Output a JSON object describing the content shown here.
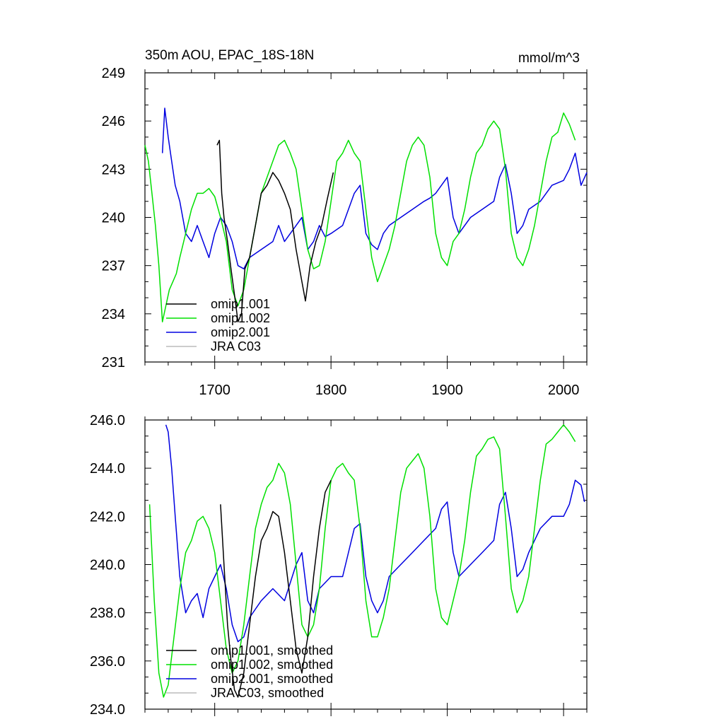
{
  "chart_data": [
    {
      "type": "line",
      "title": "350m AOU, EPAC_18S-18N",
      "units": "mmol/m^3",
      "xlim": [
        1640,
        2020
      ],
      "ylim": [
        231,
        249
      ],
      "xticks": [
        1700,
        1800,
        1900,
        2000
      ],
      "yticks": [
        231,
        234,
        237,
        240,
        243,
        246,
        249
      ],
      "ytick_format": "int",
      "show_xtick_labels": true,
      "grid": false,
      "legend": "bottom-left",
      "series": [
        {
          "name": "omip1.001",
          "color": "#000000",
          "x": [
            1702,
            1704,
            1706,
            1708,
            1711,
            1714,
            1717,
            1720,
            1723,
            1726,
            1730,
            1735,
            1740,
            1745,
            1750,
            1755,
            1760,
            1765,
            1770,
            1775,
            1778,
            1782,
            1787,
            1792,
            1797,
            1802
          ],
          "y": [
            244.5,
            244.8,
            241.5,
            240.0,
            238.5,
            236.8,
            235.2,
            233.5,
            234.0,
            236.8,
            237.5,
            239.5,
            241.5,
            242.0,
            242.8,
            242.3,
            241.5,
            240.5,
            238.0,
            236.0,
            234.8,
            237.0,
            238.5,
            239.5,
            241.2,
            242.8
          ]
        },
        {
          "name": "omip1.002",
          "color": "#00e000",
          "x": [
            1640,
            1643,
            1646,
            1649,
            1652,
            1655,
            1658,
            1661,
            1664,
            1667,
            1670,
            1675,
            1680,
            1685,
            1690,
            1695,
            1700,
            1705,
            1710,
            1715,
            1720,
            1725,
            1730,
            1735,
            1740,
            1745,
            1750,
            1755,
            1760,
            1765,
            1770,
            1775,
            1780,
            1785,
            1790,
            1795,
            1800,
            1805,
            1810,
            1815,
            1820,
            1825,
            1830,
            1835,
            1840,
            1845,
            1850,
            1855,
            1860,
            1865,
            1870,
            1875,
            1880,
            1885,
            1890,
            1895,
            1900,
            1905,
            1910,
            1915,
            1920,
            1925,
            1930,
            1935,
            1940,
            1945,
            1950,
            1955,
            1960,
            1965,
            1970,
            1975,
            1980,
            1985,
            1990,
            1995,
            2000,
            2005,
            2010
          ],
          "y": [
            244.5,
            243.5,
            241.5,
            239.5,
            237.0,
            233.5,
            234.5,
            235.5,
            236.0,
            236.5,
            237.5,
            239.0,
            240.5,
            241.5,
            241.5,
            241.8,
            241.3,
            240.0,
            238.5,
            235.5,
            234.5,
            235.5,
            237.5,
            239.5,
            241.5,
            242.5,
            243.5,
            244.5,
            244.8,
            244.0,
            243.0,
            240.5,
            238.0,
            236.8,
            237.0,
            238.5,
            241.0,
            243.5,
            244.0,
            244.8,
            244.0,
            243.5,
            240.5,
            237.5,
            236.0,
            237.0,
            238.0,
            239.5,
            241.5,
            243.5,
            244.5,
            245.0,
            244.5,
            242.5,
            239.0,
            237.5,
            237.0,
            238.5,
            239.0,
            240.5,
            242.5,
            244.0,
            244.5,
            245.5,
            246.0,
            245.5,
            243.0,
            239.0,
            237.5,
            237.0,
            238.0,
            239.5,
            241.5,
            243.5,
            245.0,
            245.3,
            246.5,
            245.8,
            244.8
          ]
        },
        {
          "name": "omip2.001",
          "color": "#0000e0",
          "x": [
            1655,
            1657,
            1660,
            1663,
            1666,
            1670,
            1675,
            1680,
            1685,
            1690,
            1695,
            1700,
            1705,
            1710,
            1715,
            1720,
            1725,
            1730,
            1740,
            1750,
            1755,
            1760,
            1770,
            1775,
            1780,
            1785,
            1790,
            1795,
            1800,
            1810,
            1820,
            1825,
            1830,
            1835,
            1840,
            1845,
            1850,
            1860,
            1870,
            1880,
            1885,
            1890,
            1895,
            1900,
            1905,
            1910,
            1920,
            1930,
            1940,
            1945,
            1950,
            1955,
            1960,
            1965,
            1970,
            1980,
            1990,
            2000,
            2005,
            2010,
            2015,
            2020
          ],
          "y": [
            244.0,
            246.8,
            245.0,
            243.5,
            242.0,
            241.0,
            239.0,
            238.5,
            239.5,
            238.5,
            237.5,
            239.0,
            240.0,
            239.5,
            238.5,
            237.0,
            236.8,
            237.5,
            238.0,
            238.5,
            239.5,
            238.5,
            239.5,
            240.0,
            238.0,
            238.5,
            239.5,
            238.8,
            239.0,
            239.5,
            241.5,
            242.0,
            239.0,
            238.3,
            238.0,
            239.0,
            239.5,
            240.0,
            240.5,
            241.0,
            241.2,
            241.5,
            242.0,
            242.5,
            240.0,
            239.0,
            240.0,
            240.5,
            241.0,
            242.5,
            243.3,
            241.5,
            239.0,
            239.5,
            240.5,
            241.0,
            242.0,
            242.3,
            243.0,
            244.0,
            242.0,
            242.8
          ]
        },
        {
          "name": "JRA C03",
          "color": "#bbbbbb",
          "x": [],
          "y": []
        }
      ]
    },
    {
      "type": "line",
      "xlim": [
        1640,
        2020
      ],
      "ylim": [
        234,
        246
      ],
      "xticks": [
        1700,
        1800,
        1900,
        2000
      ],
      "yticks": [
        234,
        236,
        238,
        240,
        242,
        244,
        246
      ],
      "ytick_format": "one_decimal",
      "show_xtick_labels": false,
      "grid": false,
      "legend": "bottom-left",
      "series": [
        {
          "name": "omip1.001, smoothed",
          "color": "#000000",
          "x": [
            1705,
            1708,
            1711,
            1714,
            1717,
            1720,
            1725,
            1730,
            1735,
            1740,
            1745,
            1750,
            1755,
            1760,
            1765,
            1770,
            1775,
            1780,
            1785,
            1790,
            1795,
            1800
          ],
          "y": [
            242.5,
            240.0,
            237.5,
            236.0,
            234.8,
            234.5,
            235.5,
            237.5,
            239.5,
            241.0,
            241.5,
            242.2,
            242.0,
            240.5,
            238.5,
            236.5,
            235.5,
            237.0,
            239.5,
            241.5,
            243.0,
            243.5
          ]
        },
        {
          "name": "omip1.002, smoothed",
          "color": "#00e000",
          "x": [
            1644,
            1648,
            1652,
            1656,
            1660,
            1665,
            1670,
            1675,
            1680,
            1685,
            1690,
            1695,
            1700,
            1705,
            1710,
            1715,
            1720,
            1725,
            1730,
            1735,
            1740,
            1745,
            1750,
            1755,
            1760,
            1765,
            1770,
            1775,
            1780,
            1785,
            1790,
            1795,
            1800,
            1805,
            1810,
            1815,
            1820,
            1825,
            1830,
            1835,
            1840,
            1845,
            1850,
            1855,
            1860,
            1865,
            1870,
            1875,
            1880,
            1885,
            1890,
            1895,
            1900,
            1905,
            1910,
            1915,
            1920,
            1925,
            1930,
            1935,
            1940,
            1945,
            1950,
            1955,
            1960,
            1965,
            1970,
            1975,
            1980,
            1985,
            1990,
            1995,
            2000,
            2005,
            2010
          ],
          "y": [
            242.5,
            238.5,
            235.5,
            234.5,
            235.0,
            237.0,
            239.0,
            240.5,
            241.0,
            241.8,
            242.0,
            241.5,
            240.5,
            238.5,
            236.5,
            235.5,
            236.0,
            237.5,
            239.5,
            241.5,
            242.5,
            243.2,
            243.5,
            244.2,
            243.8,
            242.5,
            240.0,
            237.5,
            237.0,
            237.5,
            239.0,
            241.5,
            243.5,
            244.0,
            244.2,
            243.8,
            243.5,
            241.5,
            238.5,
            237.0,
            237.0,
            237.8,
            239.0,
            241.0,
            243.0,
            244.0,
            244.3,
            244.6,
            244.0,
            242.0,
            239.0,
            237.8,
            237.5,
            238.5,
            239.5,
            241.0,
            243.0,
            244.5,
            244.8,
            245.2,
            245.3,
            244.8,
            242.0,
            239.0,
            238.0,
            238.5,
            239.5,
            241.5,
            243.5,
            245.0,
            245.2,
            245.5,
            245.8,
            245.5,
            245.1
          ]
        },
        {
          "name": "omip2.001, smoothed",
          "color": "#0000e0",
          "x": [
            1658,
            1660,
            1663,
            1666,
            1670,
            1675,
            1680,
            1685,
            1690,
            1695,
            1700,
            1705,
            1710,
            1715,
            1720,
            1725,
            1730,
            1740,
            1750,
            1760,
            1770,
            1775,
            1780,
            1785,
            1790,
            1800,
            1810,
            1820,
            1825,
            1830,
            1835,
            1840,
            1845,
            1850,
            1860,
            1870,
            1880,
            1890,
            1895,
            1900,
            1905,
            1910,
            1920,
            1930,
            1940,
            1945,
            1950,
            1955,
            1960,
            1965,
            1970,
            1980,
            1990,
            2000,
            2005,
            2010,
            2015,
            2018
          ],
          "y": [
            245.8,
            245.5,
            244.0,
            242.0,
            239.5,
            238.0,
            238.5,
            238.8,
            237.8,
            239.0,
            239.5,
            240.0,
            239.0,
            237.5,
            236.8,
            237.0,
            237.8,
            238.5,
            239.0,
            238.5,
            240.0,
            240.5,
            238.5,
            238.0,
            239.0,
            239.5,
            239.5,
            241.5,
            241.7,
            239.5,
            238.5,
            238.0,
            238.5,
            239.5,
            240.0,
            240.5,
            241.0,
            241.5,
            242.3,
            242.6,
            240.5,
            239.5,
            240.0,
            240.5,
            241.0,
            242.5,
            243.0,
            241.5,
            239.5,
            239.8,
            240.5,
            241.5,
            242.0,
            242.0,
            242.5,
            243.5,
            243.3,
            242.6
          ]
        },
        {
          "name": "JRA C03, smoothed",
          "color": "#bbbbbb",
          "x": [],
          "y": []
        }
      ]
    }
  ]
}
